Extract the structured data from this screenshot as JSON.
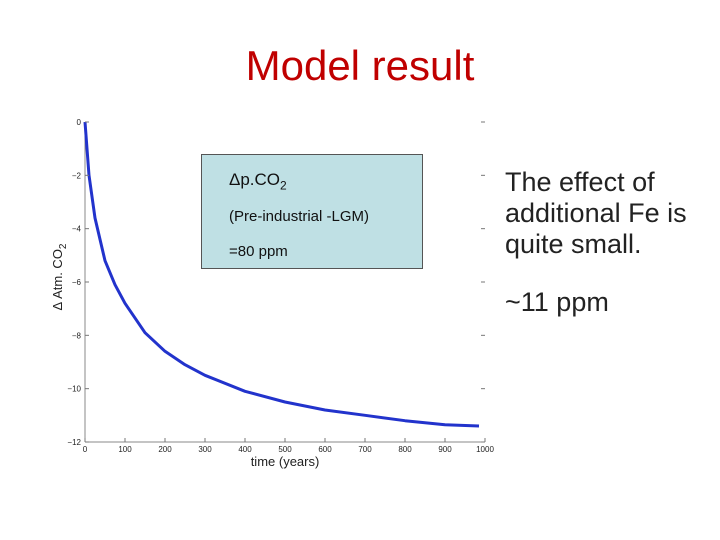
{
  "slide": {
    "title": "Model result",
    "side_text": [
      "The effect of additional Fe is quite small.",
      "~11 ppm"
    ]
  },
  "box": {
    "line1_main": "Δp.CO",
    "line1_sub": "2",
    "line2": "(Pre-industrial -LGM)",
    "line3": "=80 ppm"
  },
  "colors": {
    "title": "#c00000",
    "curve": "#2233cc",
    "box_fill": "#bfe0e4"
  },
  "chart_data": {
    "type": "line",
    "title": "",
    "xlabel": "time (years)",
    "ylabel_main": "Δ Atm. CO",
    "ylabel_sub": "2",
    "xlim": [
      0,
      1000
    ],
    "ylim": [
      -12,
      0
    ],
    "xticks": [
      0,
      100,
      200,
      300,
      400,
      500,
      600,
      700,
      800,
      900,
      1000
    ],
    "yticks": [
      0,
      -2,
      -4,
      -6,
      -8,
      -10,
      -12
    ],
    "grid": false,
    "series": [
      {
        "x": [
          0,
          10,
          25,
          50,
          75,
          100,
          150,
          200,
          250,
          300,
          400,
          500,
          600,
          700,
          800,
          900,
          985
        ],
        "y": [
          0,
          -2.0,
          -3.6,
          -5.2,
          -6.1,
          -6.8,
          -7.9,
          -8.6,
          -9.1,
          -9.5,
          -10.1,
          -10.5,
          -10.8,
          -11.0,
          -11.2,
          -11.35,
          -11.4
        ]
      }
    ]
  }
}
